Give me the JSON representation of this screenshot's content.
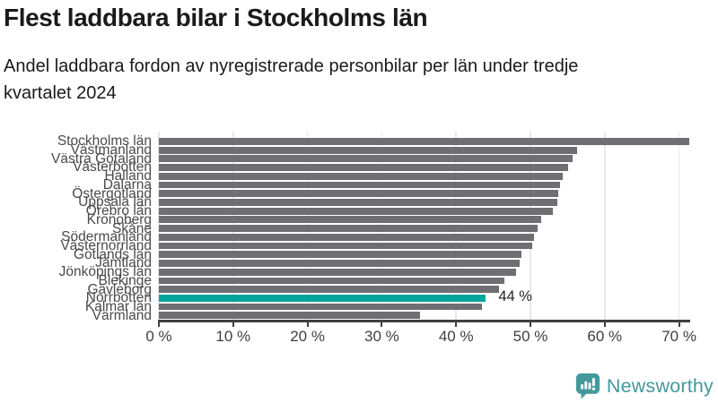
{
  "header": {
    "title": "Flest laddbara bilar i Stockholms län",
    "subtitle_lines": [
      "Andel laddbara fordon av nyregistrerade personbilar per län under tredje",
      "kvartalet 2024"
    ]
  },
  "chart_data": {
    "type": "bar",
    "orientation": "horizontal",
    "title": "Flest laddbara bilar i Stockholms län",
    "subtitle": "Andel laddbara fordon av nyregistrerade personbilar per län under tredje kvartalet 2024",
    "categories": [
      "Stockholms län",
      "Västmanland",
      "Västra Götaland",
      "Västerbotten",
      "Halland",
      "Dalarna",
      "Östergötland",
      "Uppsala län",
      "Örebro län",
      "Kronoberg",
      "Skåne",
      "Södermanland",
      "Västernorrland",
      "Gotlands län",
      "Jämtland",
      "Jönköpings län",
      "Blekinge",
      "Gävleborg",
      "Norrbotten",
      "Kalmar län",
      "Värmland"
    ],
    "values": [
      71.4,
      56.3,
      55.7,
      55.1,
      54.4,
      54.0,
      53.8,
      53.6,
      53.0,
      51.5,
      51.0,
      50.5,
      50.3,
      48.8,
      48.6,
      48.1,
      46.5,
      45.8,
      44.0,
      43.5,
      35.1
    ],
    "unit": "%",
    "xlabel": "",
    "ylabel": "",
    "xlim": [
      0,
      71.4
    ],
    "x_ticks": [
      0,
      10,
      20,
      30,
      40,
      50,
      60,
      70
    ],
    "x_tick_labels": [
      "0 %",
      "10 %",
      "20 %",
      "30 %",
      "40 %",
      "50 %",
      "60 %",
      "70 %"
    ],
    "grid": "vertical",
    "legend": "none",
    "highlight": {
      "category": "Norrbotten",
      "index": 18,
      "value": 44,
      "label": "44 %"
    },
    "colors": {
      "bar": "#6e6e73",
      "highlight": "#00a49c",
      "gridline": "#e8e8e8",
      "axis": "#3f3f3f",
      "tick_label": "#3f3f3f",
      "category_label": "#4a4a4a"
    }
  },
  "footer": {
    "brand": "Newsworthy",
    "brand_color": "#43999c"
  }
}
